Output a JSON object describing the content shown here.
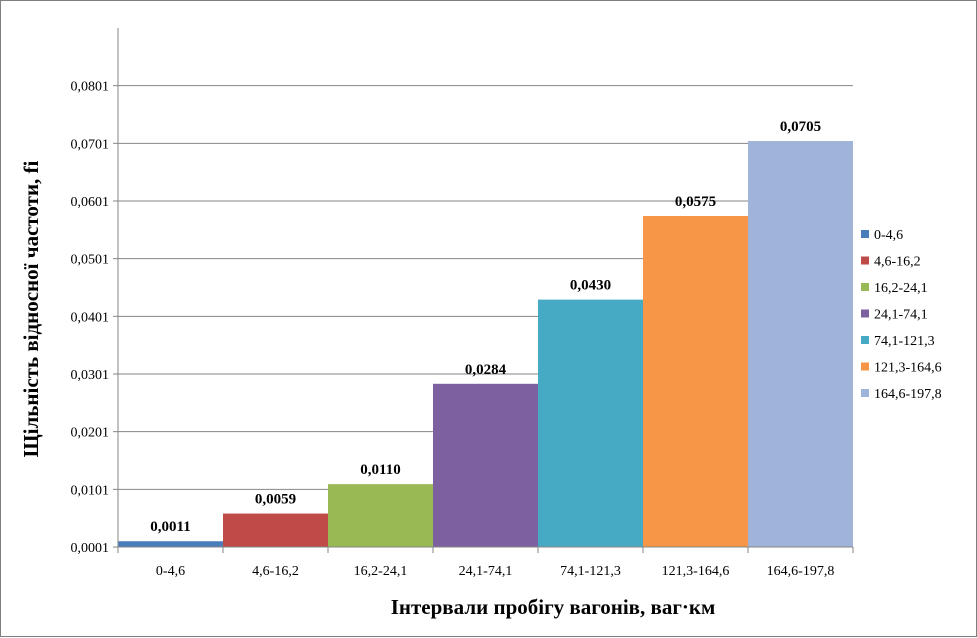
{
  "chart_data": {
    "type": "bar",
    "title": "",
    "xlabel": "Інтервали пробігу вагонів, ваг·км",
    "ylabel": "Щільність відносної частоти, fi",
    "categories": [
      "0-4,6",
      "4,6-16,2",
      "16,2-24,1",
      "24,1-74,1",
      "74,1-121,3",
      "121,3-164,6",
      "164,6-197,8"
    ],
    "values": [
      0.0011,
      0.0059,
      0.011,
      0.0284,
      0.043,
      0.0575,
      0.0705
    ],
    "value_labels": [
      "0,0011",
      "0,0059",
      "0,0110",
      "0,0284",
      "0,0430",
      "0,0575",
      "0,0705"
    ],
    "y_ticks": [
      0.0001,
      0.0101,
      0.0201,
      0.0301,
      0.0401,
      0.0501,
      0.0601,
      0.0701,
      0.0801
    ],
    "y_tick_labels": [
      "0,0001",
      "0,0101",
      "0,0201",
      "0,0301",
      "0,0401",
      "0,0501",
      "0,0601",
      "0,0701",
      "0,0801"
    ],
    "ylim": [
      0.0001,
      0.0901
    ],
    "grid": true,
    "legend_placement": "right",
    "legend": [
      "0-4,6",
      "4,6-16,2",
      "16,2-24,1",
      "24,1-74,1",
      "74,1-121,3",
      "121,3-164,6",
      "164,6-197,8"
    ],
    "colors": [
      "#4a7ebb",
      "#be4b48",
      "#98b954",
      "#7d60a0",
      "#46aac5",
      "#f79646",
      "#a0b4d9"
    ]
  }
}
